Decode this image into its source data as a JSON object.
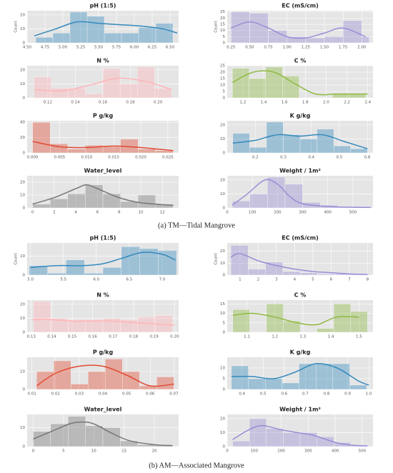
{
  "captions": [
    "(a) TM—Tidal Mangrove",
    "(b) AM—Associated Mangrove"
  ],
  "chart_data": [
    {
      "type": "histogram",
      "title": "pH (1:5)",
      "ylabel": "Count",
      "color": "#348abd",
      "bins": [
        4.62,
        4.86,
        5.1,
        5.34,
        5.58,
        5.82,
        6.06,
        6.3,
        6.54
      ],
      "counts": [
        4,
        7,
        22,
        19,
        7,
        7,
        11,
        14
      ],
      "kde": {
        "x": [
          4.6,
          4.9,
          5.2,
          5.5,
          5.8,
          6.1,
          6.4,
          6.6
        ],
        "values": [
          5,
          10,
          15,
          14,
          13,
          12,
          10,
          7
        ]
      },
      "xlim": [
        4.5,
        6.62
      ],
      "xticks": [
        {
          "value": 4.5,
          "label": "4.50"
        },
        4.75,
        {
          "value": 5,
          "label": "5.00"
        },
        5.25,
        {
          "value": 5.5,
          "label": "5.50"
        },
        5.75,
        {
          "value": 6,
          "label": "6.00"
        },
        6.25,
        {
          "value": 6.5,
          "label": "6.50"
        }
      ],
      "ylim": [
        0,
        23
      ],
      "yticks": [
        0,
        10,
        20
      ]
    },
    {
      "type": "histogram",
      "title": "EC (mS/cm)",
      "ylabel": "Count",
      "color": "#988ed5",
      "bins": [
        0.25,
        0.5,
        0.75,
        1.0,
        1.25,
        1.5,
        1.75,
        2.0,
        2.1
      ],
      "counts": [
        25,
        24,
        10,
        5,
        4,
        5,
        18,
        5
      ],
      "kde": {
        "x": [
          0.25,
          0.5,
          0.75,
          1.0,
          1.25,
          1.5,
          1.75,
          2.05
        ],
        "values": [
          12,
          17,
          12,
          5,
          4,
          8,
          12,
          5
        ]
      },
      "xlim": [
        0.2,
        2.15
      ],
      "xticks": [
        0.25,
        {
          "value": 0.5,
          "label": "0.50"
        },
        0.75,
        {
          "value": 1,
          "label": "1.00"
        },
        1.25,
        {
          "value": 1.5,
          "label": "1.50"
        },
        1.75,
        {
          "value": 2,
          "label": "2.00"
        }
      ],
      "ylim": [
        0,
        26
      ],
      "yticks": [
        0,
        5,
        10,
        15,
        20,
        25
      ]
    },
    {
      "type": "histogram",
      "title": "N %",
      "color": "#ffb5b8",
      "bins": [
        0.11,
        0.1225,
        0.135,
        0.1475,
        0.16,
        0.1725,
        0.185,
        0.1975,
        0.21
      ],
      "counts": [
        15,
        7,
        7,
        3,
        21,
        10,
        22,
        7
      ],
      "kde": {
        "x": [
          0.11,
          0.13,
          0.15,
          0.17,
          0.19,
          0.21
        ],
        "values": [
          6,
          5,
          9,
          14,
          12,
          6
        ]
      },
      "xlim": [
        0.105,
        0.215
      ],
      "xticks": [
        0.12,
        0.14,
        0.16,
        0.18,
        {
          "value": 0.2,
          "label": "0.20"
        }
      ],
      "ylim": [
        0,
        23
      ],
      "yticks": [
        0,
        10,
        20
      ]
    },
    {
      "type": "histogram",
      "title": "C %",
      "color": "#8eba42",
      "bins": [
        1.1,
        1.26,
        1.42,
        1.58,
        1.74,
        1.9,
        2.06,
        2.22,
        2.38
      ],
      "counts": [
        23,
        15,
        24,
        17,
        0,
        0,
        3,
        3
      ],
      "kde": {
        "x": [
          1.1,
          1.3,
          1.5,
          1.7,
          1.9,
          2.1,
          2.4
        ],
        "values": [
          12,
          20,
          20,
          11,
          3,
          3,
          3
        ]
      },
      "xlim": [
        1.05,
        2.45
      ],
      "xticks": [
        1.2,
        1.4,
        1.6,
        1.8,
        {
          "value": 2,
          "label": "2.0"
        },
        2.2,
        2.4
      ],
      "ylim": [
        0,
        25
      ],
      "yticks": [
        0,
        5,
        10,
        15,
        20,
        25
      ]
    },
    {
      "type": "histogram",
      "title": "P g/kg",
      "color": "#e24a33",
      "bins": [
        0,
        0.00325,
        0.0065,
        0.00975,
        0.013,
        0.01625,
        0.0195,
        0.02275,
        0.026
      ],
      "counts": [
        40,
        12,
        5,
        10,
        8,
        18,
        5,
        3
      ],
      "kde": {
        "x": [
          0,
          0.005,
          0.01,
          0.015,
          0.02,
          0.026
        ],
        "values": [
          15,
          8,
          7,
          9,
          7,
          3
        ]
      },
      "xlim": [
        -0.001,
        0.027
      ],
      "xticks": [
        {
          "value": 0,
          "label": "0.000"
        },
        0.005,
        {
          "value": 0.01,
          "label": "0.010"
        },
        0.015,
        {
          "value": 0.02,
          "label": "0.020"
        },
        0.025
      ],
      "ylim": [
        0,
        42
      ],
      "yticks": [
        0,
        20,
        40
      ]
    },
    {
      "type": "histogram",
      "title": "K g/kg",
      "color": "#348abd",
      "bins": [
        0.12,
        0.18,
        0.24,
        0.3,
        0.36,
        0.42,
        0.48,
        0.54,
        0.6
      ],
      "counts": [
        14,
        4,
        22,
        13,
        10,
        17,
        5,
        3
      ],
      "kde": {
        "x": [
          0.12,
          0.2,
          0.28,
          0.36,
          0.44,
          0.52,
          0.6
        ],
        "values": [
          7,
          9,
          13,
          12,
          13,
          8,
          3
        ]
      },
      "xlim": [
        0.1,
        0.62
      ],
      "xticks": [
        0.2,
        0.3,
        0.4,
        0.5,
        0.6
      ],
      "ylim": [
        0,
        23
      ],
      "yticks": [
        0,
        10,
        20
      ]
    },
    {
      "type": "histogram",
      "title": "Water_level",
      "color": "#777777",
      "bins": [
        0,
        1.625,
        3.25,
        4.875,
        6.5,
        8.125,
        9.75,
        11.375,
        13
      ],
      "counts": [
        3,
        7,
        11,
        18,
        11,
        5,
        10,
        3
      ],
      "kde": {
        "x": [
          0,
          2,
          4,
          5,
          6,
          8,
          10,
          13
        ],
        "values": [
          3,
          8,
          15,
          18,
          15,
          8,
          4,
          2
        ]
      },
      "xlim": [
        -0.5,
        13.5
      ],
      "xticks": [
        0,
        2,
        4,
        6,
        8,
        10,
        12
      ],
      "ylim": [
        0,
        25
      ],
      "yticks": [
        0,
        10,
        20
      ]
    },
    {
      "type": "histogram",
      "title": "Weight / 1m²",
      "color": "#988ed5",
      "bins": [
        20,
        90,
        160,
        230,
        300,
        370,
        440,
        510,
        575
      ],
      "counts": [
        5,
        10,
        22,
        17,
        4,
        2,
        1,
        1
      ],
      "kde": {
        "x": [
          20,
          80,
          150,
          200,
          250,
          300,
          400,
          500,
          570
        ],
        "values": [
          2,
          10,
          20,
          17,
          8,
          3,
          1,
          0.5,
          0.3
        ]
      },
      "xlim": [
        0,
        580
      ],
      "xticks": [
        0,
        100,
        200,
        300,
        400,
        500
      ],
      "ylim": [
        0,
        23
      ],
      "yticks": [
        0,
        10,
        20
      ]
    },
    {
      "type": "histogram",
      "title": "pH (1:5)",
      "ylabel": "Count",
      "color": "#348abd",
      "bins": [
        4.98,
        5.26,
        5.54,
        5.82,
        6.1,
        6.38,
        6.66,
        6.94,
        7.22
      ],
      "counts": [
        5,
        1,
        8,
        1,
        4,
        15,
        14,
        13
      ],
      "kde": {
        "x": [
          5,
          5.4,
          5.8,
          6.1,
          6.4,
          6.7,
          7.0,
          7.2
        ],
        "values": [
          4,
          5,
          5,
          6,
          9,
          12,
          11,
          8
        ]
      },
      "xlim": [
        4.95,
        7.25
      ],
      "xticks": [
        {
          "value": 5,
          "label": "5.0"
        },
        5.5,
        {
          "value": 6,
          "label": "6.0"
        },
        6.5,
        {
          "value": 7,
          "label": "7.0"
        }
      ],
      "ylim": [
        0,
        17
      ],
      "yticks": [
        0,
        10
      ]
    },
    {
      "type": "histogram",
      "title": "EC (mS/cm)",
      "ylabel": "Count",
      "color": "#988ed5",
      "bins": [
        0.5,
        1.45,
        2.4,
        3.35,
        4.3,
        5.25,
        6.2,
        7.15,
        8.1
      ],
      "counts": [
        25,
        5,
        11,
        3,
        2,
        1,
        1,
        1
      ],
      "kde": {
        "x": [
          0.5,
          1,
          2,
          3,
          4,
          5,
          6,
          7,
          8
        ],
        "values": [
          15,
          18,
          12,
          8,
          5,
          3,
          2,
          1,
          0.5
        ]
      },
      "xlim": [
        0.3,
        8.3
      ],
      "xticks": [
        1,
        2,
        3,
        4,
        5,
        6,
        7,
        8
      ],
      "ylim": [
        0,
        27
      ],
      "yticks": [
        0,
        10,
        20
      ]
    },
    {
      "type": "histogram",
      "title": "N %",
      "color": "#ffb5b8",
      "bins": [
        0.131,
        0.1395,
        0.148,
        0.1565,
        0.165,
        0.1735,
        0.182,
        0.1905,
        0.199
      ],
      "counts": [
        22,
        10,
        9,
        9,
        10,
        9,
        11,
        12
      ],
      "kde": {
        "x": [
          0.13,
          0.14,
          0.15,
          0.16,
          0.17,
          0.18,
          0.19,
          0.2
        ],
        "values": [
          9,
          9,
          8,
          8,
          8,
          7,
          6,
          5
        ]
      },
      "xlim": [
        0.128,
        0.202
      ],
      "xticks": [
        0.13,
        0.14,
        0.15,
        0.16,
        0.17,
        0.18,
        0.19,
        {
          "value": 0.2,
          "label": "0.20"
        }
      ],
      "ylim": [
        0,
        23
      ],
      "yticks": [
        0,
        10,
        20
      ]
    },
    {
      "type": "histogram",
      "title": "C %",
      "color": "#8eba42",
      "bins": [
        1.05,
        1.11,
        1.17,
        1.23,
        1.29,
        1.35,
        1.41,
        1.47,
        1.53
      ],
      "counts": [
        12,
        0,
        15,
        6,
        0,
        2,
        15,
        11
      ],
      "kde": {
        "x": [
          1.05,
          1.12,
          1.2,
          1.28,
          1.35,
          1.42,
          1.5
        ],
        "values": [
          9,
          10,
          8,
          5,
          4,
          8,
          8
        ]
      },
      "xlim": [
        1.03,
        1.55
      ],
      "xticks": [
        1.1,
        1.2,
        1.3,
        1.4,
        1.5
      ],
      "ylim": [
        0,
        17
      ],
      "yticks": [
        0,
        5,
        10,
        15
      ]
    },
    {
      "type": "histogram",
      "title": "P g/kg",
      "color": "#e24a33",
      "bins": [
        0.012,
        0.01925,
        0.0265,
        0.03375,
        0.041,
        0.04825,
        0.0555,
        0.06275,
        0.07
      ],
      "counts": [
        10,
        16,
        3,
        10,
        17,
        10,
        2,
        7
      ],
      "kde": {
        "x": [
          0.012,
          0.02,
          0.03,
          0.04,
          0.05,
          0.06,
          0.07
        ],
        "values": [
          2,
          9,
          13,
          13,
          8,
          2,
          3
        ]
      },
      "xlim": [
        0.008,
        0.072
      ],
      "xticks": [
        0.01,
        0.02,
        0.03,
        0.04,
        0.05,
        0.06,
        0.07
      ],
      "ylim": [
        0,
        18
      ],
      "yticks": [
        0,
        10
      ]
    },
    {
      "type": "histogram",
      "title": "K g/kg",
      "color": "#348abd",
      "bins": [
        0.35,
        0.43,
        0.51,
        0.59,
        0.67,
        0.75,
        0.83,
        0.91,
        0.99
      ],
      "counts": [
        11,
        5,
        5,
        3,
        12,
        12,
        12,
        2
      ],
      "kde": {
        "x": [
          0.35,
          0.45,
          0.55,
          0.65,
          0.75,
          0.85,
          0.95,
          1.0
        ],
        "values": [
          6,
          6,
          5,
          8,
          12,
          10,
          4,
          2
        ]
      },
      "xlim": [
        0.33,
        1.02
      ],
      "xticks": [
        0.4,
        0.5,
        0.6,
        0.7,
        0.8,
        0.9,
        {
          "value": 1,
          "label": "1.0"
        }
      ],
      "ylim": [
        0,
        15
      ],
      "yticks": [
        0,
        5,
        10
      ]
    },
    {
      "type": "histogram",
      "title": "Water_level",
      "color": "#777777",
      "bins": [
        0,
        2.875,
        5.75,
        8.625,
        11.5,
        14.375,
        17.25,
        20.125,
        23
      ],
      "counts": [
        8,
        12,
        16,
        11,
        10,
        3,
        1,
        1
      ],
      "kde": {
        "x": [
          0,
          3,
          6,
          8,
          10,
          13,
          16,
          20,
          23
        ],
        "values": [
          4,
          8,
          12,
          13,
          12,
          7,
          3,
          1,
          0.5
        ]
      },
      "xlim": [
        -1,
        24
      ],
      "xticks": [
        0,
        5,
        10,
        15,
        20
      ],
      "ylim": [
        0,
        17
      ],
      "yticks": [
        0,
        10
      ]
    },
    {
      "type": "histogram",
      "title": "Weight / 1m²",
      "color": "#988ed5",
      "bins": [
        20,
        82.5,
        145,
        207.5,
        270,
        332.5,
        395,
        457.5,
        520
      ],
      "counts": [
        4,
        20,
        13,
        10,
        10,
        7,
        3,
        1
      ],
      "kde": {
        "x": [
          20,
          80,
          130,
          200,
          260,
          320,
          400,
          460,
          520
        ],
        "values": [
          5,
          12,
          15,
          12,
          10,
          8,
          3,
          1,
          0.5
        ]
      },
      "xlim": [
        0,
        540
      ],
      "xticks": [
        0,
        100,
        200,
        300,
        400,
        500
      ],
      "ylim": [
        0,
        23
      ],
      "yticks": [
        0,
        10,
        20
      ]
    }
  ]
}
